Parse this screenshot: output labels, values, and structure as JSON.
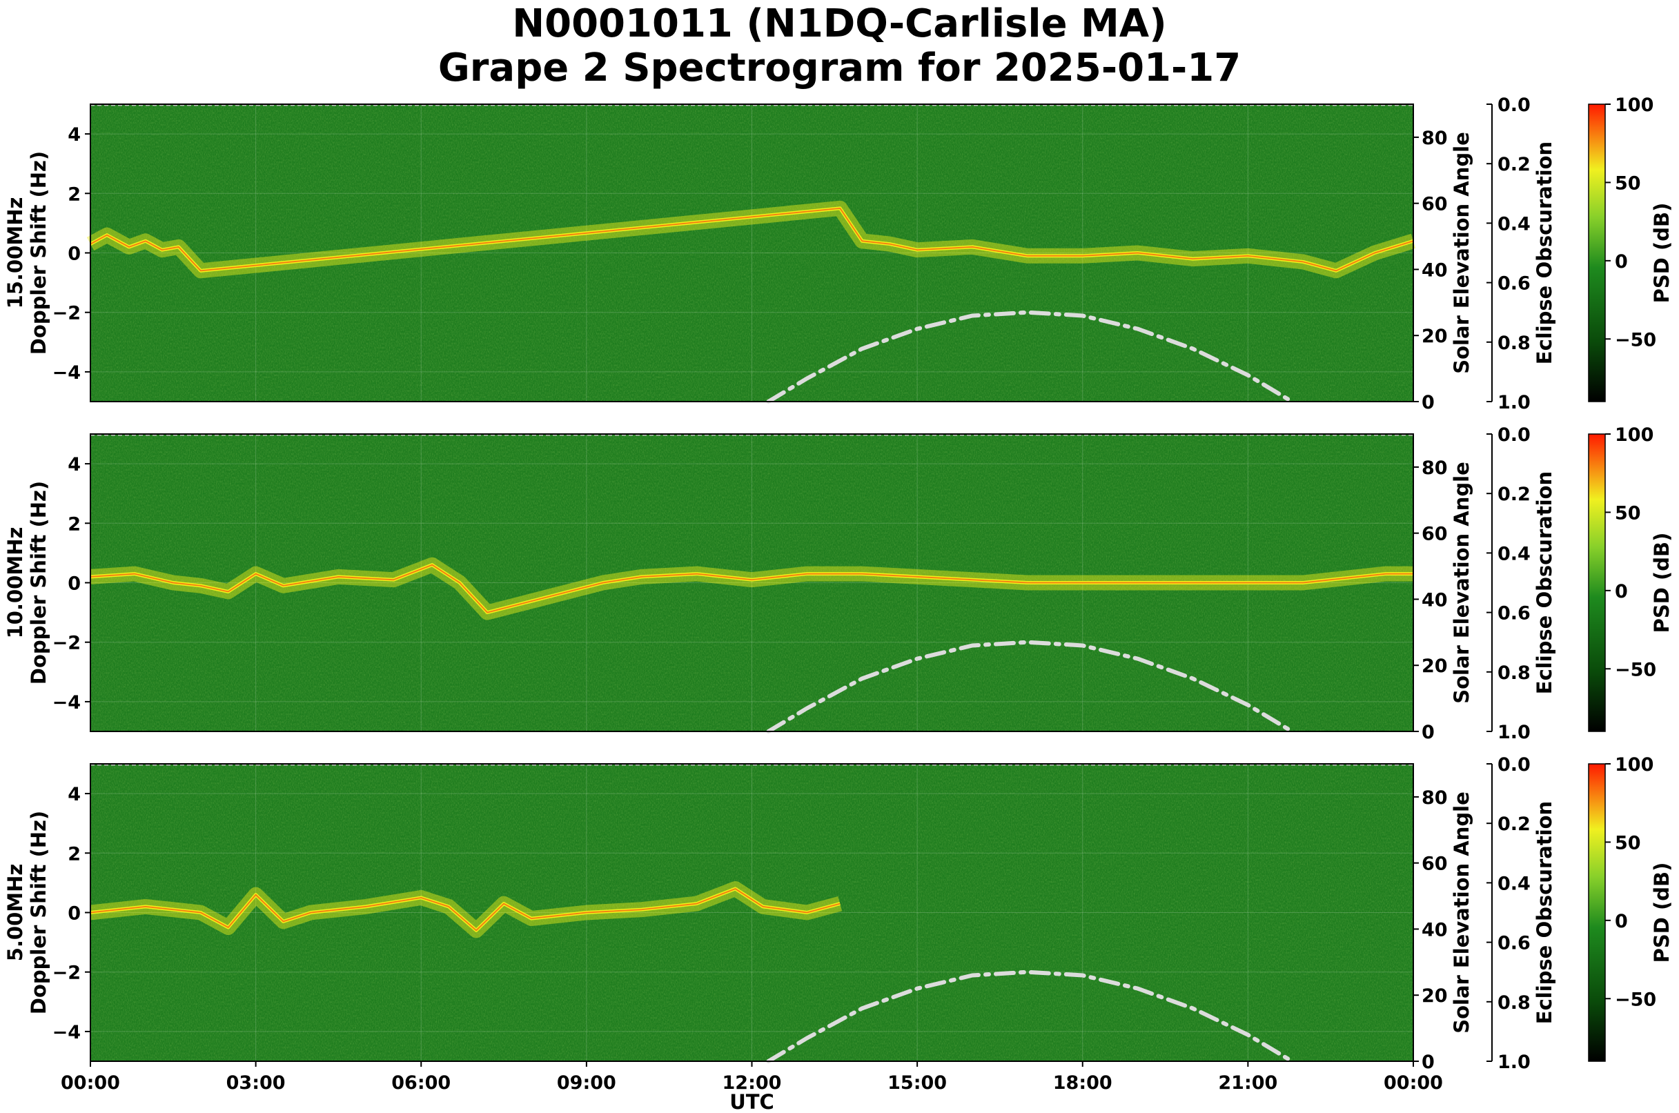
{
  "title": {
    "line1": "N0001011 (N1DQ-Carlisle MA)",
    "line2": "Grape 2 Spectrogram for 2025-01-17"
  },
  "colors": {
    "background_green": "#1f7d1f",
    "trace_yellow": "#f2f01a",
    "trace_red": "#f52a0a",
    "elevation_curve": "#dcdcdc"
  },
  "chart_data": [
    {
      "type": "heatmap",
      "name": "15.00MHz",
      "ylabel_line1": "15.00MHz",
      "ylabel_line2": "Doppler Shift (Hz)",
      "ylim": [
        -5,
        5
      ],
      "yticks": [
        "4",
        "2",
        "0",
        "−2",
        "−4"
      ],
      "right_label": "Solar Elevation Angle",
      "right_ylim": [
        0,
        90
      ],
      "right_ticks": [
        "80",
        "60",
        "40",
        "20",
        "0"
      ],
      "ecl_label": "Eclipse Obscuration",
      "ecl_ticks": [
        "0.0",
        "0.2",
        "0.4",
        "0.6",
        "0.8",
        "1.0"
      ],
      "cbar_label": "PSD (dB)",
      "cbar_ticks": [
        "100",
        "50",
        "0",
        "−50"
      ],
      "cbar_range": [
        -90,
        100
      ],
      "trace": [
        [
          0.0,
          0.3
        ],
        [
          0.3,
          0.6
        ],
        [
          0.7,
          0.2
        ],
        [
          1.0,
          0.4
        ],
        [
          1.3,
          0.1
        ],
        [
          1.6,
          0.2
        ],
        [
          2.0,
          -0.6
        ],
        [
          13.6,
          1.5
        ],
        [
          14.0,
          0.4
        ],
        [
          14.5,
          0.3
        ],
        [
          15.0,
          0.1
        ],
        [
          16.0,
          0.2
        ],
        [
          17.0,
          -0.1
        ],
        [
          18.0,
          -0.1
        ],
        [
          19.0,
          0.0
        ],
        [
          20.0,
          -0.2
        ],
        [
          21.0,
          -0.1
        ],
        [
          22.0,
          -0.3
        ],
        [
          22.6,
          -0.6
        ],
        [
          23.3,
          0.0
        ],
        [
          24.0,
          0.4
        ]
      ]
    },
    {
      "type": "heatmap",
      "name": "10.00MHz",
      "ylabel_line1": "10.00MHz",
      "ylabel_line2": "Doppler Shift (Hz)",
      "ylim": [
        -5,
        5
      ],
      "yticks": [
        "4",
        "2",
        "0",
        "−2",
        "−4"
      ],
      "right_label": "Solar Elevation Angle",
      "right_ylim": [
        0,
        90
      ],
      "right_ticks": [
        "80",
        "60",
        "40",
        "20",
        "0"
      ],
      "ecl_label": "Eclipse Obscuration",
      "ecl_ticks": [
        "0.0",
        "0.2",
        "0.4",
        "0.6",
        "0.8",
        "1.0"
      ],
      "cbar_label": "PSD (dB)",
      "cbar_ticks": [
        "100",
        "50",
        "0",
        "−50"
      ],
      "cbar_range": [
        -90,
        100
      ],
      "trace": [
        [
          0.0,
          0.2
        ],
        [
          0.8,
          0.3
        ],
        [
          1.5,
          0.0
        ],
        [
          2.0,
          -0.1
        ],
        [
          2.5,
          -0.3
        ],
        [
          3.0,
          0.3
        ],
        [
          3.5,
          -0.1
        ],
        [
          4.5,
          0.2
        ],
        [
          5.5,
          0.1
        ],
        [
          6.2,
          0.6
        ],
        [
          6.7,
          0.0
        ],
        [
          7.2,
          -1.0
        ],
        [
          9.3,
          0.0
        ],
        [
          10.0,
          0.2
        ],
        [
          11.0,
          0.3
        ],
        [
          12.0,
          0.1
        ],
        [
          13.0,
          0.3
        ],
        [
          14.0,
          0.3
        ],
        [
          15.0,
          0.2
        ],
        [
          16.0,
          0.1
        ],
        [
          17.0,
          0.0
        ],
        [
          18.0,
          0.0
        ],
        [
          20.0,
          0.0
        ],
        [
          22.0,
          0.0
        ],
        [
          23.5,
          0.3
        ],
        [
          24.0,
          0.3
        ]
      ]
    },
    {
      "type": "heatmap",
      "name": "5.00MHz",
      "ylabel_line1": "5.00MHz",
      "ylabel_line2": "Doppler Shift (Hz)",
      "ylim": [
        -5,
        5
      ],
      "yticks": [
        "4",
        "2",
        "0",
        "−2",
        "−4"
      ],
      "right_label": "Solar Elevation Angle",
      "right_ylim": [
        0,
        90
      ],
      "right_ticks": [
        "80",
        "60",
        "40",
        "20",
        "0"
      ],
      "ecl_label": "Eclipse Obscuration",
      "ecl_ticks": [
        "0.0",
        "0.2",
        "0.4",
        "0.6",
        "0.8",
        "1.0"
      ],
      "cbar_label": "PSD (dB)",
      "cbar_ticks": [
        "100",
        "50",
        "0",
        "−50"
      ],
      "cbar_range": [
        -90,
        100
      ],
      "trace": [
        [
          0.0,
          0.0
        ],
        [
          1.0,
          0.2
        ],
        [
          2.0,
          0.0
        ],
        [
          2.5,
          -0.5
        ],
        [
          3.0,
          0.6
        ],
        [
          3.5,
          -0.3
        ],
        [
          4.0,
          0.0
        ],
        [
          5.0,
          0.2
        ],
        [
          6.0,
          0.5
        ],
        [
          6.5,
          0.2
        ],
        [
          7.0,
          -0.6
        ],
        [
          7.5,
          0.3
        ],
        [
          8.0,
          -0.2
        ],
        [
          9.0,
          0.0
        ],
        [
          10.0,
          0.1
        ],
        [
          11.0,
          0.3
        ],
        [
          11.7,
          0.8
        ],
        [
          12.2,
          0.2
        ],
        [
          13.0,
          0.0
        ],
        [
          13.6,
          0.3
        ]
      ]
    }
  ],
  "x_axis": {
    "label": "UTC",
    "ticks": [
      "00:00",
      "03:00",
      "06:00",
      "09:00",
      "12:00",
      "15:00",
      "18:00",
      "21:00",
      "00:00"
    ],
    "range_hours": [
      0,
      24
    ]
  },
  "solar_elevation_curve": {
    "style": "dash-dot",
    "points": [
      [
        12.3,
        0
      ],
      [
        13.0,
        7
      ],
      [
        14.0,
        16
      ],
      [
        15.0,
        22
      ],
      [
        16.0,
        26
      ],
      [
        17.0,
        27
      ],
      [
        18.0,
        26
      ],
      [
        19.0,
        22
      ],
      [
        20.0,
        16
      ],
      [
        21.0,
        8
      ],
      [
        21.8,
        0
      ]
    ]
  }
}
